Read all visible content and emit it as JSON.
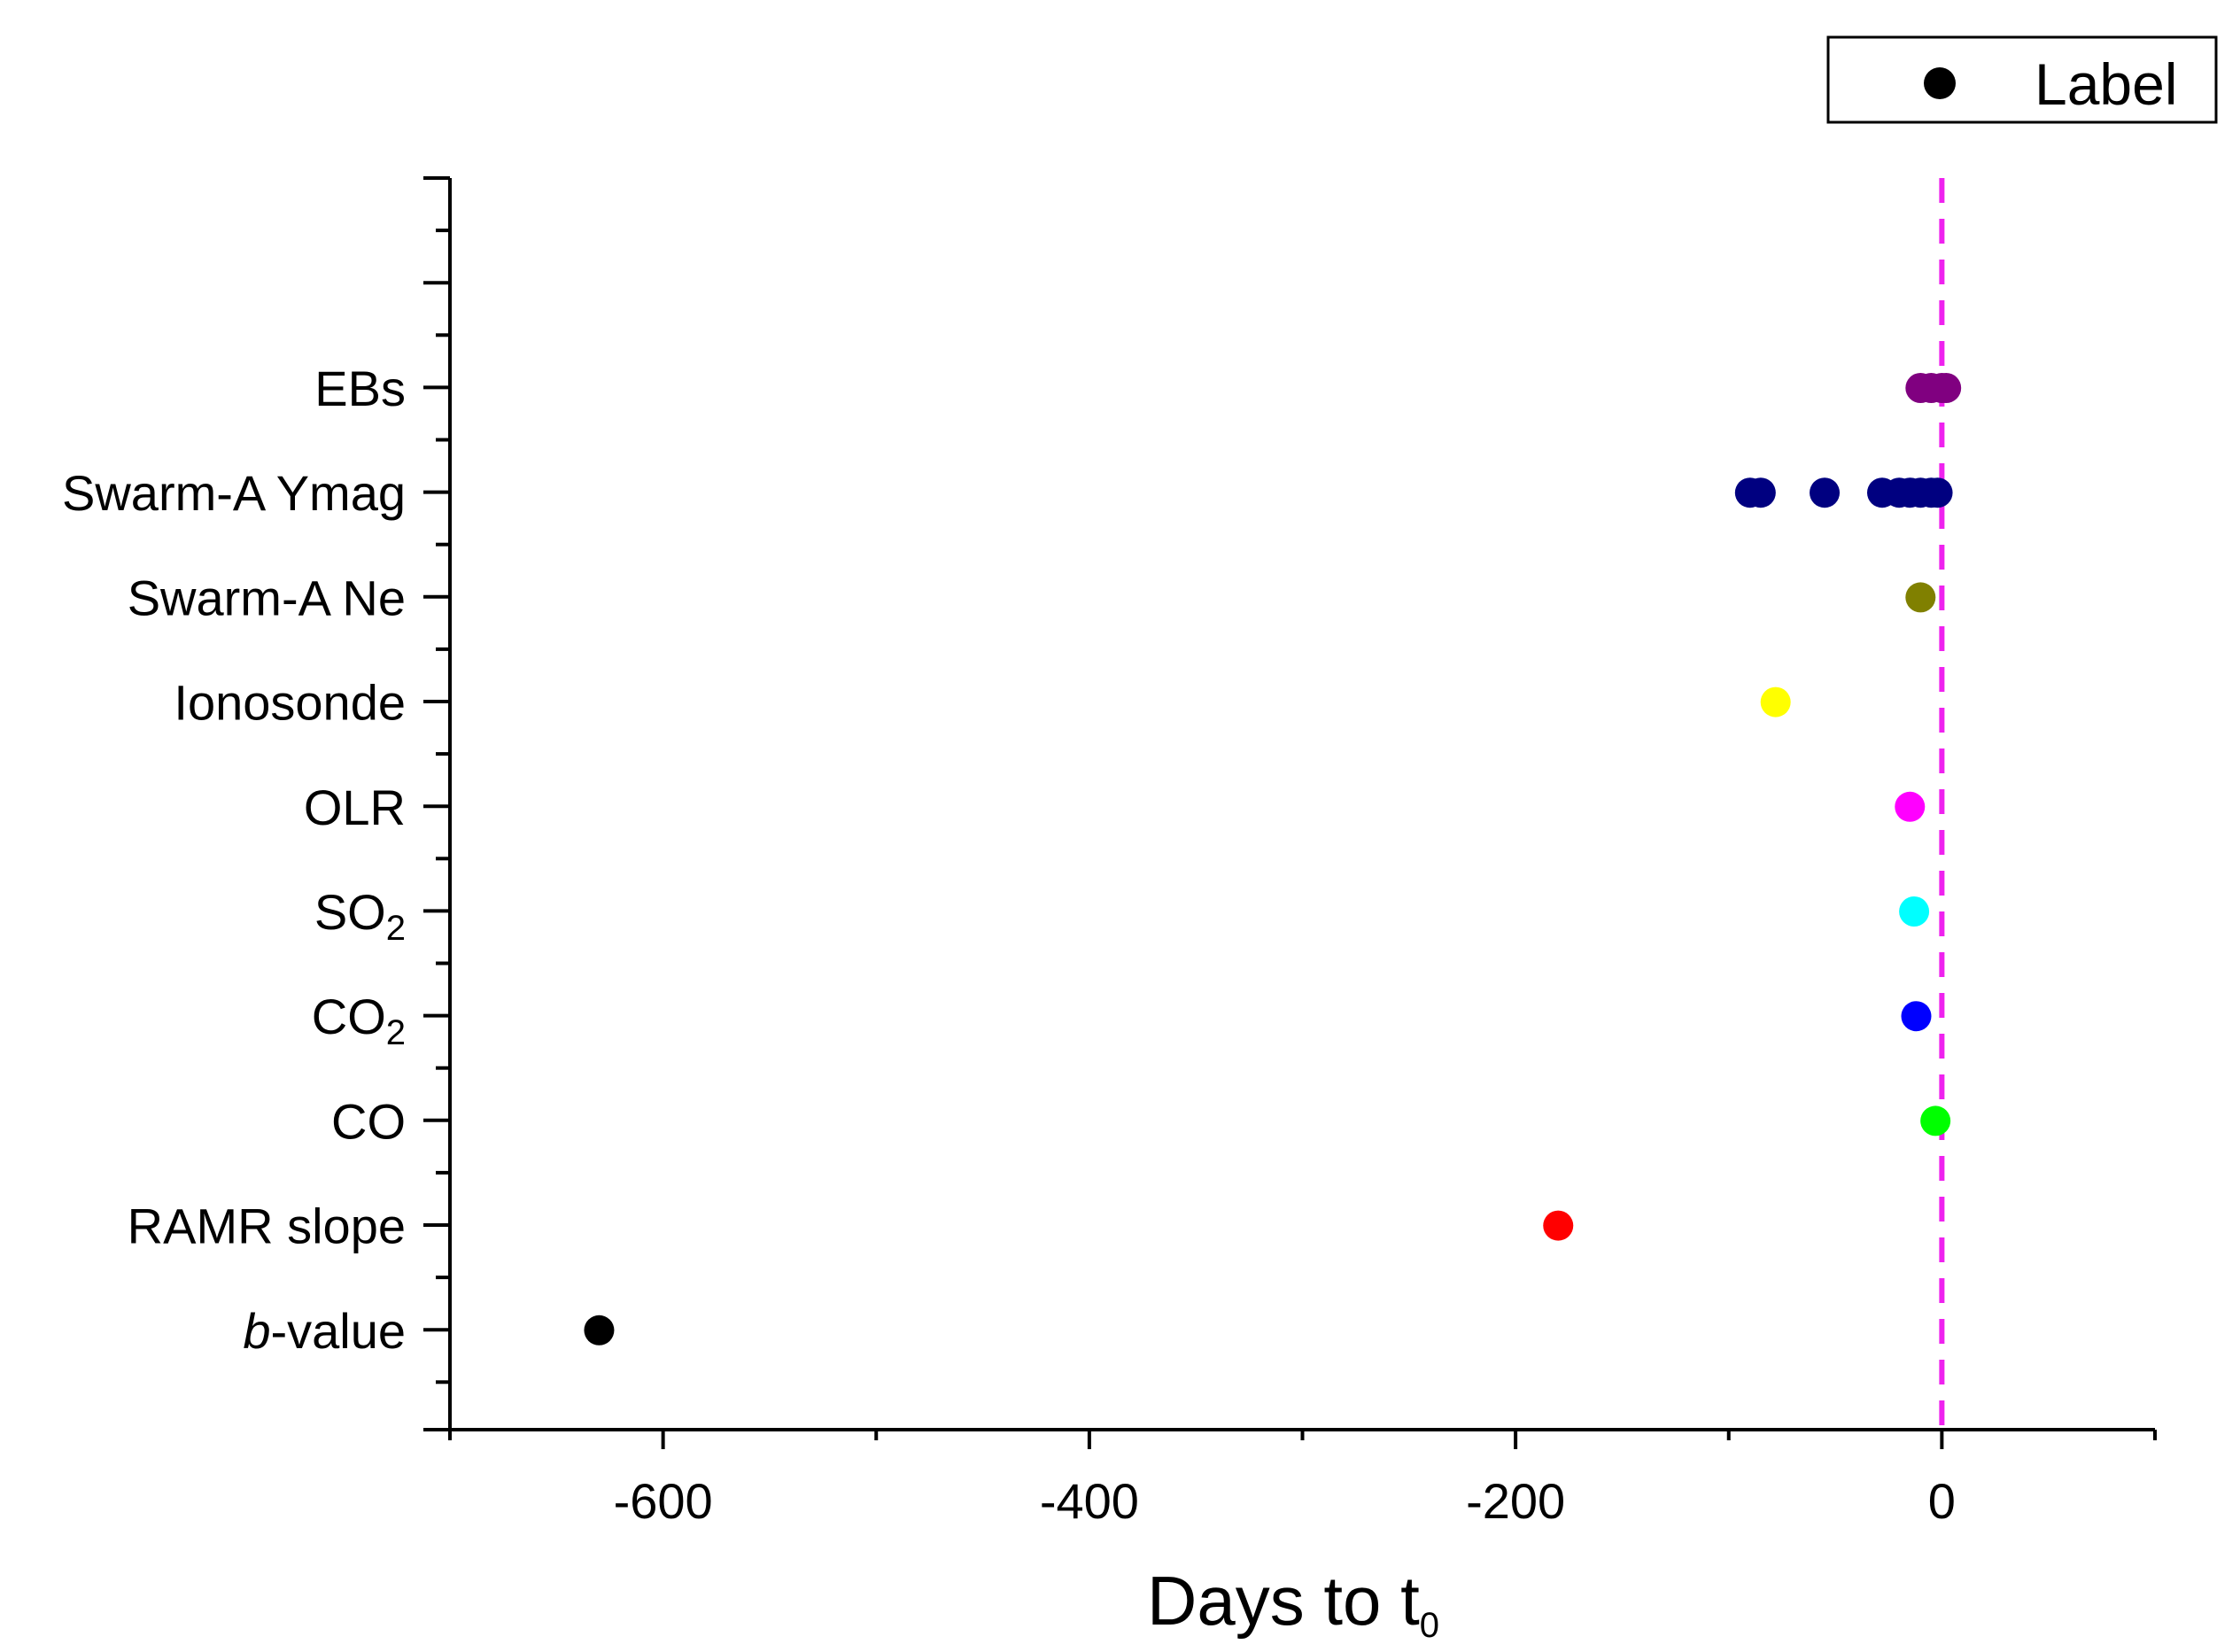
{
  "chart_data": {
    "type": "scatter",
    "title": "",
    "xlabel": {
      "base": "Days to t",
      "subscript": "0"
    },
    "ylabel": "",
    "xlim": [
      -700,
      100
    ],
    "xticks": [
      -600,
      -400,
      -200,
      0
    ],
    "xtick_labels": [
      "-600",
      "-400",
      "-200",
      "0"
    ],
    "grid": false,
    "reference_line": {
      "x": 0,
      "style": "dashed",
      "color": "#EE22EE"
    },
    "legend": {
      "position": "top-right",
      "label": "Label",
      "marker_color": "#000000"
    },
    "categories": [
      {
        "key": "ebs",
        "text": "EBs",
        "sub": "",
        "italic": "",
        "color": "#800080",
        "x": [
          -10,
          -5,
          0,
          2
        ]
      },
      {
        "key": "swarm-ymag",
        "text": "Swarm-A Ymag",
        "sub": "",
        "italic": "",
        "color": "#000080",
        "x": [
          -90,
          -85,
          -55,
          -28,
          -20,
          -15,
          -10,
          -5,
          -2
        ]
      },
      {
        "key": "swarm-ne",
        "text": "Swarm-A Ne",
        "sub": "",
        "italic": "",
        "color": "#808000",
        "x": [
          -10
        ]
      },
      {
        "key": "ionosonde",
        "text": "Ionosonde",
        "sub": "",
        "italic": "",
        "color": "#FFFF00",
        "x": [
          -78
        ]
      },
      {
        "key": "olr",
        "text": "OLR",
        "sub": "",
        "italic": "",
        "color": "#FF00FF",
        "x": [
          -15
        ]
      },
      {
        "key": "so2",
        "text": "SO",
        "sub": "2",
        "italic": "",
        "color": "#00FFFF",
        "x": [
          -13
        ]
      },
      {
        "key": "co2",
        "text": "CO",
        "sub": "2",
        "italic": "",
        "color": "#0000FF",
        "x": [
          -12
        ]
      },
      {
        "key": "co",
        "text": "CO",
        "sub": "",
        "italic": "",
        "color": "#00FF00",
        "x": [
          -3
        ]
      },
      {
        "key": "ramr-slope",
        "text": "RAMR slope",
        "sub": "",
        "italic": "",
        "color": "#FF0000",
        "x": [
          -180
        ]
      },
      {
        "key": "b-value",
        "text": "-value",
        "sub": "",
        "italic": "b",
        "color": "#000000",
        "x": [
          -630
        ]
      }
    ]
  }
}
